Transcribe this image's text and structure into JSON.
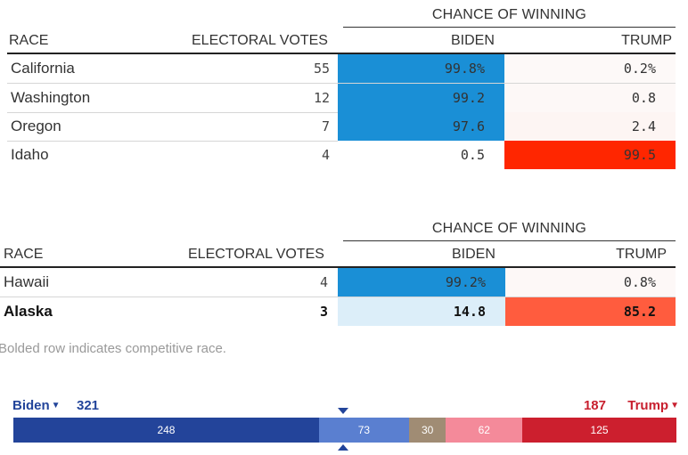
{
  "tables": [
    {
      "chance_header": "CHANCE OF WINNING",
      "columns": {
        "race": "RACE",
        "ev": "ELECTORAL VOTES",
        "biden": "BIDEN",
        "trump": "TRUMP"
      },
      "rows": [
        {
          "race": "California",
          "ev": "55",
          "biden": "99.8%",
          "trump": "0.2%",
          "bold": false
        },
        {
          "race": "Washington",
          "ev": "12",
          "biden": "99.2",
          "trump": "0.8",
          "bold": false
        },
        {
          "race": "Oregon",
          "ev": "7",
          "biden": "97.6",
          "trump": "2.4",
          "bold": false
        },
        {
          "race": "Idaho",
          "ev": "4",
          "biden": "0.5",
          "trump": "99.5",
          "bold": false
        }
      ]
    },
    {
      "chance_header": "CHANCE OF WINNING",
      "columns": {
        "race": "RACE",
        "ev": "ELECTORAL VOTES",
        "biden": "BIDEN",
        "trump": "TRUMP"
      },
      "rows": [
        {
          "race": "Hawaii",
          "ev": "4",
          "biden": "99.2%",
          "trump": "0.8%",
          "bold": false
        },
        {
          "race": "Alaska",
          "ev": "3",
          "biden": "14.8",
          "trump": "85.2",
          "bold": true
        }
      ]
    }
  ],
  "footnote": "Bolded row indicates competitive race.",
  "summary": {
    "biden_label": "Biden",
    "biden_total": "321",
    "trump_label": "Trump",
    "trump_total": "187",
    "segments": [
      {
        "label": "248",
        "value": 248,
        "color": "#23449a"
      },
      {
        "label": "73",
        "value": 73,
        "color": "#5a7fd0"
      },
      {
        "label": "30",
        "value": 30,
        "color": "#a08c74"
      },
      {
        "label": "62",
        "value": 62,
        "color": "#f48a9a"
      },
      {
        "label": "125",
        "value": 125,
        "color": "#cc1f2e"
      }
    ]
  },
  "colors": {
    "biden_strong": "#1a8fd6",
    "biden_light": "#dceef9",
    "trump_strong": "#ff2600",
    "trump_medium": "#ff5c3e",
    "trump_faint": "#fdf6f4"
  }
}
